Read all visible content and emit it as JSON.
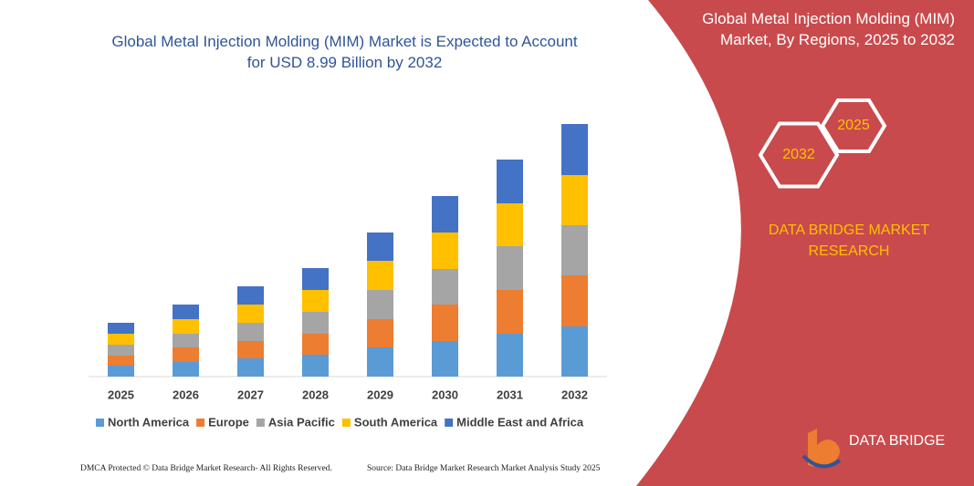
{
  "chart_data": {
    "type": "stacked_bar",
    "title": "Global Metal Injection Molding (MIM) Market is Expected to Account for USD 8.99 Billion by 2032",
    "categories": [
      "2025",
      "2026",
      "2027",
      "2028",
      "2029",
      "2030",
      "2031",
      "2032"
    ],
    "series": [
      {
        "name": "North America",
        "color": "#5b9bd5",
        "values": [
          12,
          16,
          20,
          24,
          32,
          39,
          47,
          55
        ]
      },
      {
        "name": "Europe",
        "color": "#ed7d31",
        "values": [
          11,
          16,
          19,
          23,
          31,
          40,
          48,
          56
        ]
      },
      {
        "name": "Asia Pacific",
        "color": "#a5a5a5",
        "values": [
          12,
          15,
          20,
          24,
          32,
          39,
          48,
          55
        ]
      },
      {
        "name": "South America",
        "color": "#ffc000",
        "values": [
          12,
          16,
          20,
          24,
          32,
          40,
          47,
          55
        ]
      },
      {
        "name": "Middle East and Africa",
        "color": "#4472c4",
        "values": [
          12,
          16,
          20,
          24,
          31,
          40,
          48,
          56
        ]
      }
    ],
    "ylim": [
      0,
      280
    ]
  },
  "panel": {
    "title": "Global Metal Injection Molding (MIM) Market, By Regions, 2025 to 2032",
    "hex_labels": [
      "2025",
      "2032"
    ],
    "brand": "DATA BRIDGE MARKET RESEARCH"
  },
  "logo": {
    "name": "DATA BRIDGE"
  },
  "footer": {
    "left": "DMCA Protected © Data Bridge Market Research- All Rights Reserved.",
    "right": "Source: Data Bridge Market Research Market Analysis Study 2025"
  }
}
